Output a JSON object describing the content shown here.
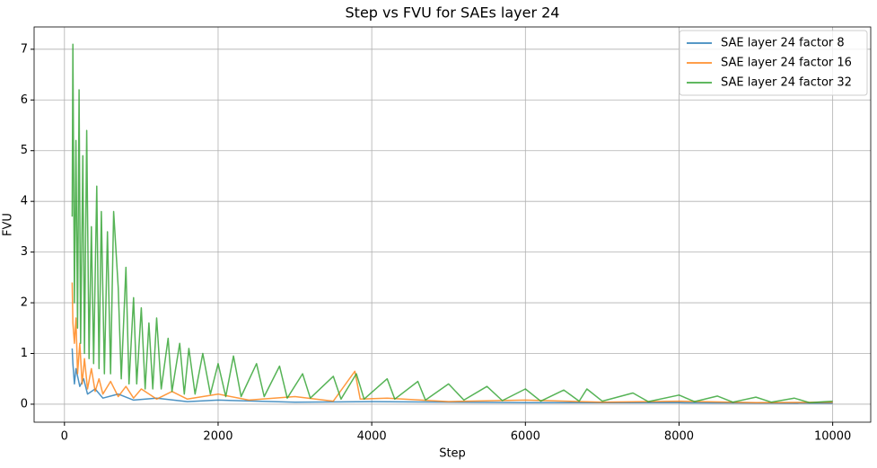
{
  "chart_data": {
    "type": "line",
    "title": "Step vs FVU for SAEs layer 24",
    "xlabel": "Step",
    "ylabel": "FVU",
    "xlim": [
      -395,
      10495
    ],
    "ylim": [
      -0.355,
      7.44
    ],
    "xticks": [
      0,
      2000,
      4000,
      6000,
      8000,
      10000
    ],
    "yticks": [
      0,
      1,
      2,
      3,
      4,
      5,
      6,
      7
    ],
    "grid": true,
    "legend": "upper right",
    "series": [
      {
        "name": "SAE layer 24 factor 8",
        "color": "#1f77b4",
        "x": [
          100,
          110,
          130,
          150,
          200,
          250,
          300,
          400,
          500,
          700,
          900,
          1200,
          1600,
          2000,
          3000,
          4000,
          6000,
          8000,
          10000
        ],
        "values": [
          1.1,
          0.8,
          0.4,
          0.7,
          0.35,
          0.5,
          0.2,
          0.3,
          0.12,
          0.2,
          0.08,
          0.12,
          0.05,
          0.08,
          0.04,
          0.05,
          0.03,
          0.03,
          0.02
        ]
      },
      {
        "name": "SAE layer 24 factor 16",
        "color": "#ff7f0e",
        "x": [
          100,
          110,
          130,
          150,
          170,
          200,
          230,
          260,
          300,
          350,
          400,
          450,
          500,
          600,
          700,
          800,
          900,
          1000,
          1200,
          1400,
          1600,
          2000,
          2400,
          3000,
          3500,
          3780,
          3850,
          4200,
          5000,
          6000,
          7000,
          8000,
          9000,
          10000
        ],
        "values": [
          2.4,
          1.6,
          1.2,
          1.7,
          0.6,
          1.2,
          0.4,
          0.9,
          0.3,
          0.7,
          0.25,
          0.5,
          0.2,
          0.45,
          0.15,
          0.35,
          0.12,
          0.3,
          0.1,
          0.25,
          0.1,
          0.2,
          0.08,
          0.15,
          0.06,
          0.65,
          0.1,
          0.12,
          0.05,
          0.08,
          0.04,
          0.06,
          0.03,
          0.04
        ]
      },
      {
        "name": "SAE layer 24 factor 32",
        "color": "#2ca02c",
        "x": [
          100,
          110,
          130,
          150,
          170,
          190,
          210,
          240,
          260,
          290,
          320,
          350,
          380,
          420,
          450,
          480,
          520,
          560,
          600,
          640,
          700,
          740,
          800,
          840,
          900,
          940,
          1000,
          1050,
          1100,
          1150,
          1200,
          1260,
          1350,
          1400,
          1500,
          1560,
          1620,
          1700,
          1800,
          1900,
          2000,
          2100,
          2200,
          2300,
          2500,
          2600,
          2800,
          2900,
          3100,
          3200,
          3500,
          3600,
          3800,
          3900,
          4200,
          4300,
          4600,
          4700,
          5000,
          5200,
          5500,
          5700,
          6000,
          6200,
          6500,
          6700,
          6800,
          7000,
          7400,
          7600,
          8000,
          8200,
          8500,
          8700,
          9000,
          9200,
          9500,
          9700,
          10000
        ],
        "values": [
          3.7,
          7.1,
          2.0,
          5.2,
          1.5,
          6.2,
          1.2,
          4.9,
          1.0,
          5.4,
          0.9,
          3.5,
          0.8,
          4.3,
          0.7,
          3.8,
          0.6,
          3.4,
          0.6,
          3.8,
          2.3,
          0.5,
          2.7,
          0.4,
          2.1,
          0.4,
          1.9,
          0.3,
          1.6,
          0.3,
          1.7,
          0.3,
          1.3,
          0.25,
          1.2,
          0.2,
          1.1,
          0.2,
          1.0,
          0.2,
          0.8,
          0.15,
          0.95,
          0.15,
          0.8,
          0.15,
          0.75,
          0.12,
          0.6,
          0.12,
          0.55,
          0.1,
          0.6,
          0.1,
          0.5,
          0.1,
          0.45,
          0.08,
          0.4,
          0.08,
          0.35,
          0.07,
          0.3,
          0.06,
          0.28,
          0.06,
          0.3,
          0.06,
          0.22,
          0.05,
          0.18,
          0.05,
          0.16,
          0.04,
          0.14,
          0.04,
          0.12,
          0.03,
          0.06
        ]
      }
    ]
  }
}
